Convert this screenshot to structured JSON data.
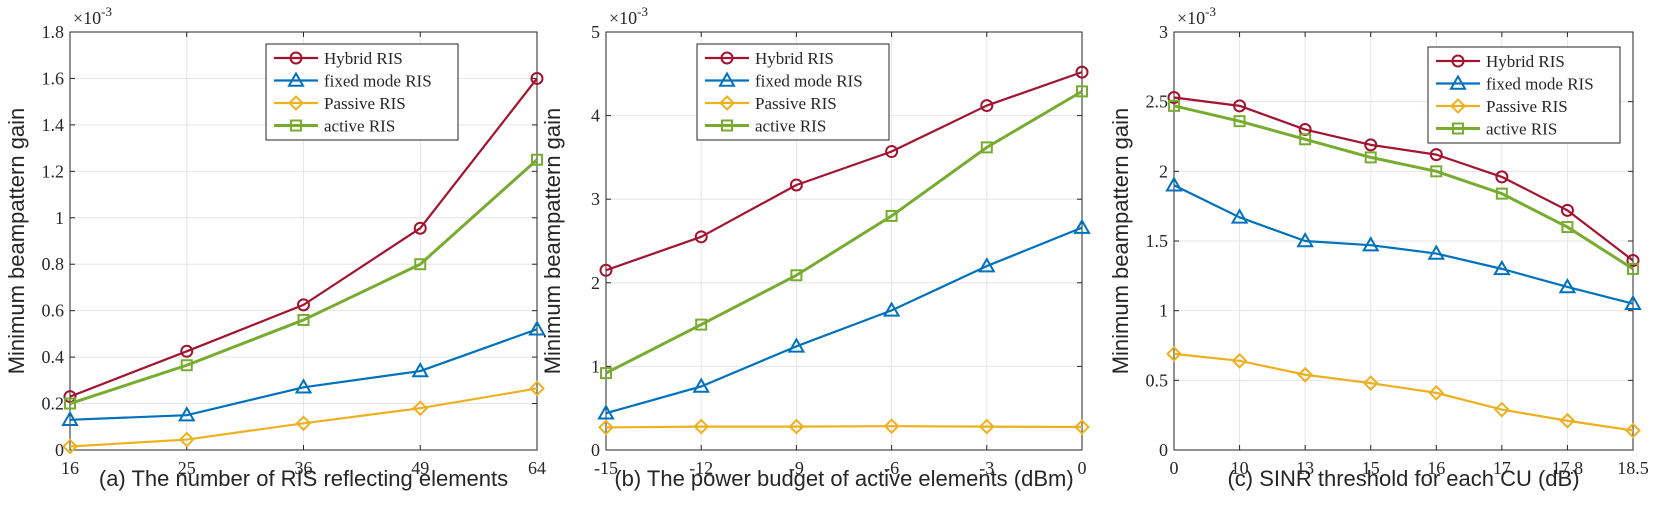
{
  "series_styles": [
    {
      "name": "Hybrid RIS",
      "color": "#a2142f",
      "marker": "circle"
    },
    {
      "name": "fixed mode RIS",
      "color": "#0072bd",
      "marker": "triangle"
    },
    {
      "name": "Passive RIS",
      "color": "#edb120",
      "marker": "diamond"
    },
    {
      "name": "active RIS",
      "color": "#77ac30",
      "marker": "square"
    }
  ],
  "chart_data": [
    {
      "type": "line",
      "xlabel": "(a) The number of RIS reflecting elements",
      "ylabel": "Minimum beampattern gain",
      "exponent_label": "×10",
      "exponent_power": "-3",
      "categories": [
        "16",
        "25",
        "36",
        "49",
        "64"
      ],
      "ylim": [
        0,
        1.8
      ],
      "yticks": [
        0,
        0.2,
        0.4,
        0.6,
        0.8,
        1,
        1.2,
        1.4,
        1.6,
        1.8
      ],
      "ytick_labels": [
        "0",
        "0.2",
        "0.4",
        "0.6",
        "0.8",
        "1",
        "1.2",
        "1.4",
        "1.6",
        "1.8"
      ],
      "legend_position": "top-right",
      "series": [
        {
          "name": "Hybrid RIS",
          "values": [
            0.23,
            0.425,
            0.625,
            0.955,
            1.6
          ]
        },
        {
          "name": "fixed mode RIS",
          "values": [
            0.13,
            0.15,
            0.27,
            0.34,
            0.52
          ]
        },
        {
          "name": "Passive RIS",
          "values": [
            0.015,
            0.045,
            0.115,
            0.18,
            0.265
          ]
        },
        {
          "name": "active RIS",
          "values": [
            0.2,
            0.365,
            0.56,
            0.8,
            1.25
          ]
        }
      ]
    },
    {
      "type": "line",
      "xlabel": "(b) The power budget of active elements (dBm)",
      "ylabel": "Minimum beampattern gain",
      "exponent_label": "×10",
      "exponent_power": "-3",
      "categories": [
        "-15",
        "-12",
        "-9",
        "-6",
        "-3",
        "0"
      ],
      "ylim": [
        0,
        5
      ],
      "yticks": [
        0,
        1,
        2,
        3,
        4,
        5
      ],
      "ytick_labels": [
        "0",
        "1",
        "2",
        "3",
        "4",
        "5"
      ],
      "legend_position": "top-left",
      "series": [
        {
          "name": "Hybrid RIS",
          "values": [
            2.15,
            2.55,
            3.17,
            3.57,
            4.12,
            4.52
          ]
        },
        {
          "name": "fixed mode RIS",
          "values": [
            0.44,
            0.76,
            1.24,
            1.67,
            2.2,
            2.66
          ]
        },
        {
          "name": "Passive RIS",
          "values": [
            0.27,
            0.28,
            0.28,
            0.285,
            0.28,
            0.275
          ]
        },
        {
          "name": "active RIS",
          "values": [
            0.92,
            1.5,
            2.09,
            2.8,
            3.62,
            4.29
          ]
        }
      ]
    },
    {
      "type": "line",
      "xlabel": "(c) SINR threshold for each CU (dB)",
      "ylabel": "Minimum beampattern gain",
      "exponent_label": "×10",
      "exponent_power": "-3",
      "categories": [
        "0",
        "10",
        "13",
        "15",
        "16",
        "17",
        "17.8",
        "18.5"
      ],
      "ylim": [
        0,
        3
      ],
      "yticks": [
        0,
        0.5,
        1,
        1.5,
        2,
        2.5,
        3
      ],
      "ytick_labels": [
        "0",
        "0.5",
        "1",
        "1.5",
        "2",
        "2.5",
        "3"
      ],
      "legend_position": "top-right",
      "series": [
        {
          "name": "Hybrid RIS",
          "values": [
            2.53,
            2.47,
            2.3,
            2.19,
            2.12,
            1.96,
            1.72,
            1.36
          ]
        },
        {
          "name": "fixed mode RIS",
          "values": [
            1.9,
            1.67,
            1.5,
            1.47,
            1.41,
            1.3,
            1.17,
            1.05
          ]
        },
        {
          "name": "Passive RIS",
          "values": [
            0.69,
            0.64,
            0.54,
            0.48,
            0.41,
            0.29,
            0.21,
            0.14
          ]
        },
        {
          "name": "active RIS",
          "values": [
            2.47,
            2.36,
            2.23,
            2.1,
            2.0,
            1.84,
            1.6,
            1.3
          ]
        }
      ]
    }
  ]
}
